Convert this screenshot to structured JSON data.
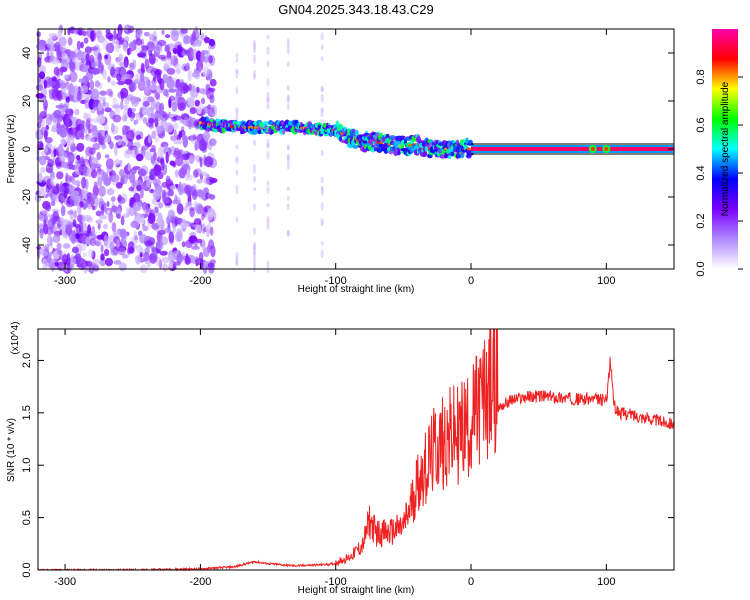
{
  "title": "GN04.2025.343.18.43.C29",
  "chart_data": [
    {
      "type": "heatmap",
      "xlabel": "Height of straight line (km)",
      "ylabel": "Frequency (Hz)",
      "xlim": [
        -320,
        150
      ],
      "ylim": [
        -50,
        50
      ],
      "x_ticks": [
        -300,
        -200,
        -100,
        0,
        100
      ],
      "y_ticks": [
        -40,
        -20,
        0,
        20,
        40
      ],
      "colorbar": {
        "label": "Normalized spectral amplitude",
        "range": [
          0,
          1
        ],
        "ticks": [
          "0.0",
          "0.2",
          "0.4",
          "0.6",
          "0.8"
        ],
        "colormap": [
          "#ffffff",
          "#b088ff",
          "#7a00ff",
          "#0000ff",
          "#00ffff",
          "#00ff00",
          "#ffff00",
          "#ff0000",
          "#ff00aa"
        ]
      },
      "signal_track": {
        "x": [
          -200,
          -190,
          -170,
          -150,
          -130,
          -110,
          -100,
          -90,
          -80,
          -70,
          -60,
          -50,
          -40,
          -30,
          -20,
          -10,
          0,
          50,
          100,
          150
        ],
        "freq": [
          11,
          10,
          9,
          9,
          9,
          8,
          8,
          5,
          3,
          3,
          2,
          1,
          2,
          0,
          0,
          0,
          0,
          0,
          0,
          0
        ]
      }
    },
    {
      "type": "line",
      "xlabel": "Height of straight line (km)",
      "ylabel": "SNR (10 * v/v)",
      "y_multiplier": "(x10^4)",
      "xlim": [
        -320,
        150
      ],
      "ylim": [
        0,
        2.3
      ],
      "x_ticks": [
        -300,
        -200,
        -100,
        0,
        100
      ],
      "y_ticks": [
        "0.0",
        "0.5",
        "1.0",
        "1.5",
        "2.0"
      ],
      "color": "#ee2222",
      "series": [
        {
          "x": [
            -320,
            -250,
            -200,
            -175,
            -160,
            -150,
            -130,
            -110,
            -100,
            -90,
            -80,
            -75,
            -70,
            -60,
            -50,
            -45,
            -40,
            -30,
            -25,
            -20,
            -10,
            0,
            10,
            20,
            30,
            40,
            50,
            60,
            70,
            80,
            90,
            100,
            103,
            106,
            110,
            120,
            130,
            140,
            150
          ],
          "y": [
            0.0,
            0.0,
            0.01,
            0.03,
            0.08,
            0.06,
            0.04,
            0.05,
            0.06,
            0.1,
            0.2,
            0.4,
            0.3,
            0.3,
            0.35,
            0.5,
            0.7,
            0.9,
            1.0,
            1.05,
            1.1,
            1.2,
            1.4,
            1.55,
            1.62,
            1.65,
            1.66,
            1.65,
            1.64,
            1.63,
            1.63,
            1.62,
            2.0,
            1.55,
            1.5,
            1.48,
            1.45,
            1.42,
            1.4
          ]
        }
      ]
    }
  ]
}
